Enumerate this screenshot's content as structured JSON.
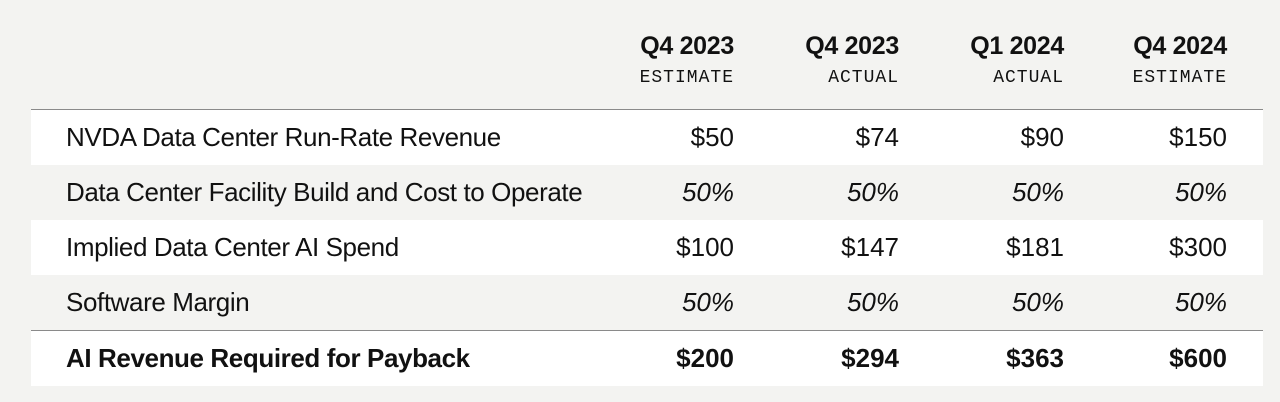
{
  "columns": [
    {
      "title": "Q4 2023",
      "subtitle": "ESTIMATE"
    },
    {
      "title": "Q4 2023",
      "subtitle": "ACTUAL"
    },
    {
      "title": "Q1 2024",
      "subtitle": "ACTUAL"
    },
    {
      "title": "Q4 2024",
      "subtitle": "ESTIMATE"
    }
  ],
  "rows": [
    {
      "label": "NVDA Data Center Run-Rate Revenue",
      "values": [
        "$50",
        "$74",
        "$90",
        "$150"
      ]
    },
    {
      "label": "Data Center Facility Build and Cost to Operate",
      "values": [
        "50%",
        "50%",
        "50%",
        "50%"
      ]
    },
    {
      "label": "Implied Data Center AI Spend",
      "values": [
        "$100",
        "$147",
        "$181",
        "$300"
      ]
    },
    {
      "label": "Software Margin",
      "values": [
        "50%",
        "50%",
        "50%",
        "50%"
      ]
    }
  ],
  "total": {
    "label": "AI Revenue Required for Payback",
    "values": [
      "$200",
      "$294",
      "$363",
      "$600"
    ]
  },
  "colors": {
    "background": "#f3f3f1",
    "row_shade": "#ffffff",
    "text": "#111111",
    "rule": "#8a8a8a"
  }
}
